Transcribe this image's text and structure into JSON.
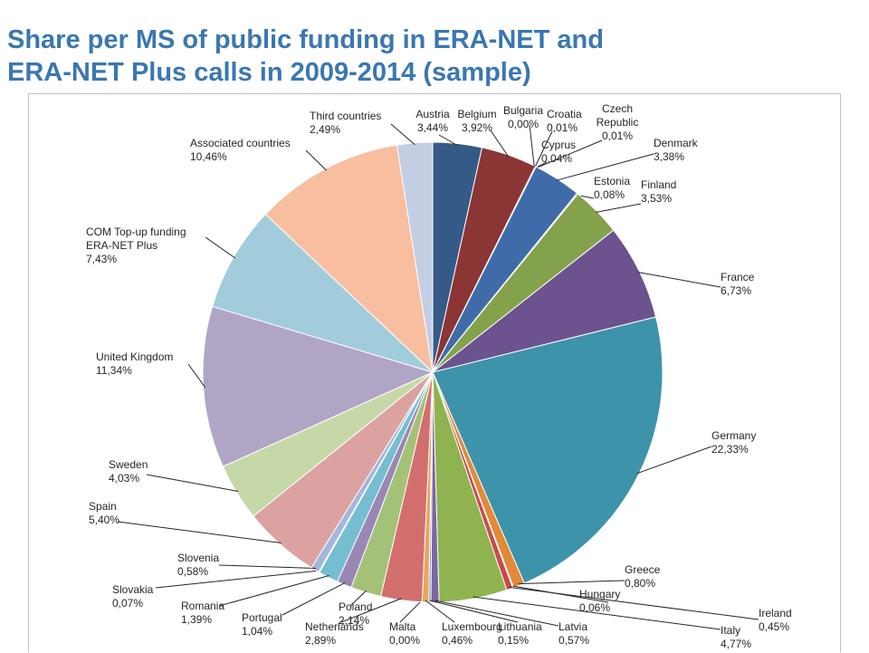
{
  "title": {
    "line1": "Share per MS of public funding in ERA-NET and",
    "line2": "ERA-NET Plus calls in 2009-2014 (sample)"
  },
  "chart_data": {
    "type": "pie",
    "title": "Share per MS of public funding in ERA-NET and ERA-NET Plus calls in 2009-2014 (sample)",
    "unit": "%",
    "slices": [
      {
        "name": "Austria",
        "label": [
          "Austria"
        ],
        "value_label": "3,44%",
        "value": 3.44,
        "color": "#365a87"
      },
      {
        "name": "Belgium",
        "label": [
          "Belgium"
        ],
        "value_label": "3,92%",
        "value": 3.92,
        "color": "#8b3535"
      },
      {
        "name": "Bulgaria",
        "label": [
          "Bulgaria"
        ],
        "value_label": "0,00%",
        "value": 0.0,
        "color": "#5e7d2a"
      },
      {
        "name": "Croatia",
        "label": [
          "Croatia"
        ],
        "value_label": "0,01%",
        "value": 0.01,
        "color": "#564272"
      },
      {
        "name": "Cyprus",
        "label": [
          "Cyprus"
        ],
        "value_label": "0,04%",
        "value": 0.04,
        "color": "#2f8199"
      },
      {
        "name": "Czech Republic",
        "label": [
          "Czech",
          "Republic"
        ],
        "value_label": "0,01%",
        "value": 0.01,
        "color": "#c46a1e"
      },
      {
        "name": "Denmark",
        "label": [
          "Denmark"
        ],
        "value_label": "3,38%",
        "value": 3.38,
        "color": "#3f6ca8"
      },
      {
        "name": "Estonia",
        "label": [
          "Estonia"
        ],
        "value_label": "0,08%",
        "value": 0.08,
        "color": "#b33d3b"
      },
      {
        "name": "Finland",
        "label": [
          "Finland"
        ],
        "value_label": "3,53%",
        "value": 3.53,
        "color": "#84a24c"
      },
      {
        "name": "France",
        "label": [
          "France"
        ],
        "value_label": "6,73%",
        "value": 6.73,
        "color": "#6c528e"
      },
      {
        "name": "Germany",
        "label": [
          "Germany"
        ],
        "value_label": "22,33%",
        "value": 22.33,
        "color": "#3d93aa"
      },
      {
        "name": "Greece",
        "label": [
          "Greece"
        ],
        "value_label": "0,80%",
        "value": 0.8,
        "color": "#e2893a"
      },
      {
        "name": "Hungary",
        "label": [
          "Hungary"
        ],
        "value_label": "0,06%",
        "value": 0.06,
        "color": "#5a82c0"
      },
      {
        "name": "Ireland",
        "label": [
          "Ireland"
        ],
        "value_label": "0,45%",
        "value": 0.45,
        "color": "#c94b4b"
      },
      {
        "name": "Italy",
        "label": [
          "Italy"
        ],
        "value_label": "4,77%",
        "value": 4.77,
        "color": "#8fb350"
      },
      {
        "name": "Latvia",
        "label": [
          "Latvia"
        ],
        "value_label": "0,57%",
        "value": 0.57,
        "color": "#7d66a2"
      },
      {
        "name": "Lithuania",
        "label": [
          "Lithuania"
        ],
        "value_label": "0,15%",
        "value": 0.15,
        "color": "#4fa6bd"
      },
      {
        "name": "Luxembourg",
        "label": [
          "Luxembourg"
        ],
        "value_label": "0,46%",
        "value": 0.46,
        "color": "#f0a15a"
      },
      {
        "name": "Malta",
        "label": [
          "Malta"
        ],
        "value_label": "0,00%",
        "value": 0.0,
        "color": "#7e9ccc"
      },
      {
        "name": "Netherlands",
        "label": [
          "Netherlands"
        ],
        "value_label": "2,89%",
        "value": 2.89,
        "color": "#d26f6e"
      },
      {
        "name": "Poland",
        "label": [
          "Poland"
        ],
        "value_label": "2,14%",
        "value": 2.14,
        "color": "#a4c178"
      },
      {
        "name": "Portugal",
        "label": [
          "Portugal"
        ],
        "value_label": "1,04%",
        "value": 1.04,
        "color": "#9a87b4"
      },
      {
        "name": "Romania",
        "label": [
          "Romania"
        ],
        "value_label": "1,39%",
        "value": 1.39,
        "color": "#75bdd0"
      },
      {
        "name": "Slovakia",
        "label": [
          "Slovakia"
        ],
        "value_label": "0,07%",
        "value": 0.07,
        "color": "#f6b985"
      },
      {
        "name": "Slovenia",
        "label": [
          "Slovenia"
        ],
        "value_label": "0,58%",
        "value": 0.58,
        "color": "#a3b6db"
      },
      {
        "name": "Spain",
        "label": [
          "Spain"
        ],
        "value_label": "5,40%",
        "value": 5.4,
        "color": "#dba2a1"
      },
      {
        "name": "Sweden",
        "label": [
          "Sweden"
        ],
        "value_label": "4,03%",
        "value": 4.03,
        "color": "#c6d8a7"
      },
      {
        "name": "United Kingdom",
        "label": [
          "United Kingdom"
        ],
        "value_label": "11,34%",
        "value": 11.34,
        "color": "#b1a5c6"
      },
      {
        "name": "COM Top-up funding ERA-NET Plus",
        "label": [
          "COM Top-up funding",
          "ERA-NET Plus"
        ],
        "value_label": "7,43%",
        "value": 7.43,
        "color": "#a2ccdb"
      },
      {
        "name": "Associated countries",
        "label": [
          "Associated countries"
        ],
        "value_label": "10,46%",
        "value": 10.46,
        "color": "#f8bea0"
      },
      {
        "name": "Third countries",
        "label": [
          "Third countries"
        ],
        "value_label": "2,49%",
        "value": 2.49,
        "color": "#c3cde3"
      }
    ]
  }
}
